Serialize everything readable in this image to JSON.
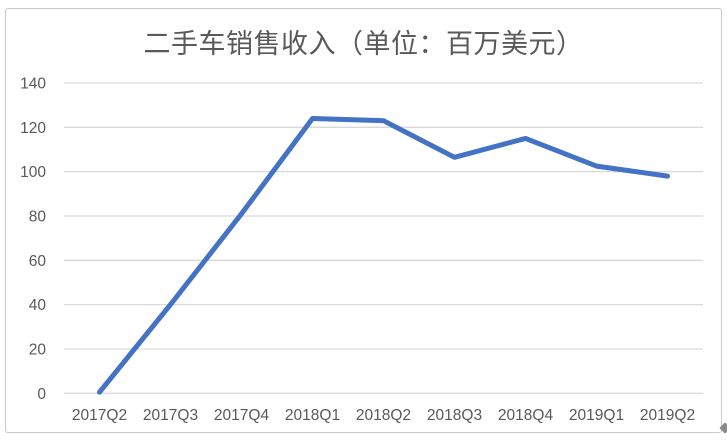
{
  "window": {
    "background": "#FFFFFF",
    "border_color": "#C9C9C9"
  },
  "chart_data": {
    "type": "line",
    "title": "二手车销售收入（单位：百万美元）",
    "categories": [
      "2017Q2",
      "2017Q3",
      "2017Q4",
      "2018Q1",
      "2018Q2",
      "2018Q3",
      "2018Q4",
      "2019Q1",
      "2019Q2"
    ],
    "values": [
      0.5,
      40,
      81,
      124,
      123,
      106.5,
      115,
      102.5,
      98
    ],
    "xlabel": "",
    "ylabel": "",
    "ylim": [
      0,
      140
    ],
    "yticks": [
      0,
      20,
      40,
      60,
      80,
      100,
      120,
      140
    ],
    "grid": true,
    "legend_position": "none",
    "line_color": "#4472C4",
    "grid_color": "#D9D9D9",
    "tick_label_color": "#595959",
    "title_color": "#595959"
  }
}
